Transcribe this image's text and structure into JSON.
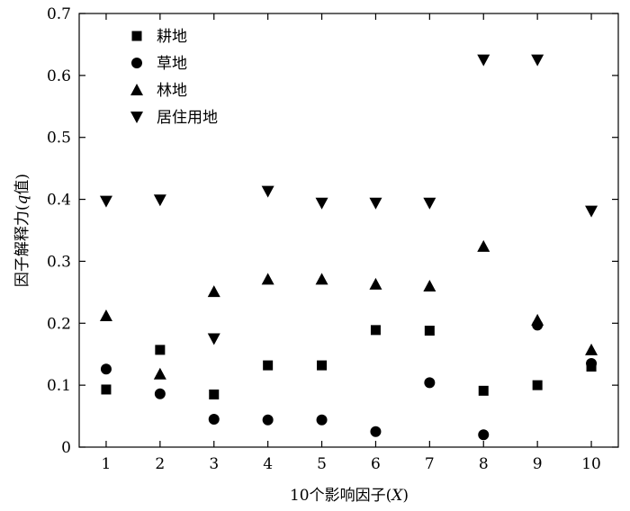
{
  "chart_data": {
    "type": "scatter",
    "title": "",
    "xlabel": {
      "prefix": "10个影响因子(",
      "italic": "X",
      "suffix": ")"
    },
    "ylabel": {
      "prefix": "因子解释力(",
      "italic": "q",
      "suffix": "值)"
    },
    "x": [
      1,
      2,
      3,
      4,
      5,
      6,
      7,
      8,
      9,
      10
    ],
    "xlim": [
      0.5,
      10.5
    ],
    "ylim": [
      0,
      0.7
    ],
    "xticks": [
      1,
      2,
      3,
      4,
      5,
      6,
      7,
      8,
      9,
      10
    ],
    "yticks": [
      0,
      0.1,
      0.2,
      0.3,
      0.4,
      0.5,
      0.6,
      0.7
    ],
    "ytick_labels": [
      "0",
      "0.1",
      "0.2",
      "0.3",
      "0.4",
      "0.5",
      "0.6",
      "0.7"
    ],
    "grid": false,
    "legend_position": "top-left",
    "series": [
      {
        "name": "耕地",
        "marker": "square",
        "values": [
          0.093,
          0.157,
          0.085,
          0.132,
          0.132,
          0.189,
          0.188,
          0.091,
          0.1,
          0.13
        ]
      },
      {
        "name": "草地",
        "marker": "circle",
        "values": [
          0.126,
          0.086,
          0.045,
          0.044,
          0.044,
          0.025,
          0.104,
          0.02,
          0.197,
          0.135
        ]
      },
      {
        "name": "林地",
        "marker": "triangle-up",
        "values": [
          0.212,
          0.118,
          0.251,
          0.271,
          0.271,
          0.263,
          0.26,
          0.324,
          0.205,
          0.157
        ]
      },
      {
        "name": "居住用地",
        "marker": "triangle-down",
        "values": [
          0.397,
          0.399,
          0.175,
          0.413,
          0.394,
          0.394,
          0.394,
          0.625,
          0.625,
          0.381
        ]
      }
    ]
  }
}
